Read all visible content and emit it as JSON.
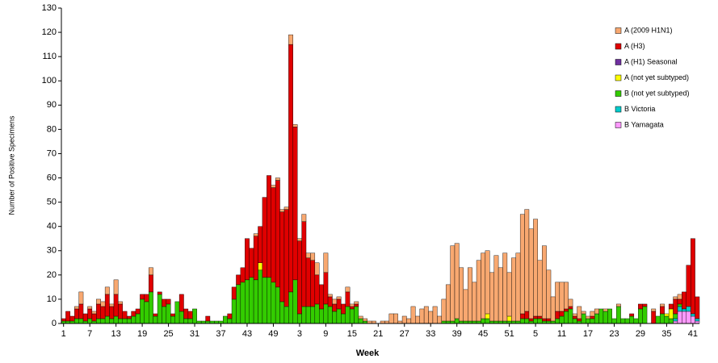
{
  "chart_data": {
    "type": "stacked_bar",
    "x_label": "Week",
    "y_label": "Number of Positive Specimens",
    "categories": [
      "1",
      null,
      null,
      null,
      null,
      null,
      "7",
      null,
      null,
      null,
      null,
      null,
      "13",
      null,
      null,
      null,
      null,
      null,
      "19",
      null,
      null,
      null,
      null,
      null,
      "25",
      null,
      null,
      null,
      null,
      null,
      "31",
      null,
      null,
      null,
      null,
      null,
      "37",
      null,
      null,
      null,
      null,
      null,
      "43",
      null,
      null,
      null,
      null,
      null,
      "49",
      null,
      null,
      null,
      null,
      null,
      "3",
      null,
      null,
      null,
      null,
      null,
      "9",
      null,
      null,
      null,
      null,
      null,
      "15",
      null,
      null,
      null,
      null,
      null,
      "21",
      null,
      null,
      null,
      null,
      null,
      "27",
      null,
      null,
      null,
      null,
      null,
      "33",
      null,
      null,
      null,
      null,
      null,
      "39",
      null,
      null,
      null,
      null,
      null,
      "45",
      null,
      null,
      null,
      null,
      null,
      "51",
      null,
      null,
      null,
      null,
      null,
      "5",
      null,
      null,
      null,
      null,
      null,
      "11",
      null,
      null,
      null,
      null,
      null,
      "17",
      null,
      null,
      null,
      null,
      null,
      "23",
      null,
      null,
      null,
      null,
      null,
      "29",
      null,
      null,
      null,
      null,
      null,
      "35",
      null,
      null,
      null,
      null,
      null,
      "41",
      null
    ],
    "ylim": [
      0,
      130
    ],
    "yticks": [
      0,
      10,
      20,
      30,
      40,
      50,
      60,
      70,
      80,
      90,
      100,
      110,
      120,
      130
    ],
    "legend": "top-right",
    "series": [
      {
        "name": "A (2009 H1N1)",
        "color": "#f8a870",
        "values": [
          0,
          0,
          0,
          1,
          5,
          0,
          1,
          1,
          2,
          2,
          3,
          1,
          6,
          1,
          0,
          0,
          0,
          0,
          0,
          0,
          3,
          0,
          0,
          0,
          0,
          0,
          0,
          0,
          0,
          0,
          0,
          0,
          0,
          0,
          0,
          0,
          0,
          0,
          0,
          0,
          0,
          0,
          0,
          0,
          1,
          0,
          0,
          0,
          1,
          1,
          1,
          1,
          4,
          1,
          1,
          3,
          2,
          3,
          5,
          0,
          8,
          1,
          2,
          1,
          0,
          2,
          1,
          1,
          1,
          1,
          1,
          1,
          0,
          1,
          1,
          4,
          4,
          1,
          3,
          2,
          7,
          3,
          6,
          7,
          5,
          7,
          3,
          9,
          15,
          31,
          31,
          22,
          13,
          22,
          16,
          25,
          27,
          26,
          20,
          27,
          22,
          28,
          18,
          26,
          28,
          41,
          42,
          37,
          40,
          23,
          30,
          20,
          10,
          12,
          12,
          11,
          3,
          1,
          5,
          1,
          1,
          2,
          2,
          0,
          1,
          0,
          0,
          1,
          0,
          0,
          0,
          0,
          0,
          0,
          0,
          1,
          0,
          1,
          0,
          0,
          1,
          2,
          0,
          0,
          0,
          0
        ]
      },
      {
        "name": "A (H3)",
        "color": "#e00000",
        "values": [
          1,
          4,
          2,
          4,
          6,
          3,
          4,
          3,
          6,
          5,
          9,
          5,
          9,
          6,
          3,
          1,
          2,
          2,
          2,
          3,
          7,
          1,
          1,
          3,
          2,
          1,
          0,
          7,
          4,
          3,
          0,
          0,
          0,
          2,
          0,
          0,
          0,
          0,
          2,
          5,
          4,
          6,
          17,
          12,
          18,
          15,
          33,
          42,
          39,
          44,
          37,
          40,
          102,
          63,
          30,
          35,
          20,
          19,
          12,
          10,
          13,
          4,
          3,
          4,
          4,
          6,
          1,
          1,
          0,
          0,
          0,
          0,
          0,
          0,
          0,
          0,
          0,
          0,
          0,
          0,
          0,
          0,
          0,
          0,
          0,
          0,
          0,
          0,
          0,
          0,
          0,
          0,
          0,
          0,
          0,
          0,
          0,
          0,
          0,
          0,
          0,
          0,
          0,
          0,
          0,
          2,
          3,
          1,
          1,
          1,
          1,
          1,
          0,
          3,
          2,
          1,
          1,
          1,
          1,
          0,
          0,
          1,
          0,
          0,
          0,
          0,
          0,
          0,
          0,
          0,
          1,
          0,
          2,
          1,
          0,
          5,
          0,
          3,
          0,
          2,
          6,
          2,
          7,
          17,
          31,
          9
        ]
      },
      {
        "name": "A (H1) Seasonal",
        "color": "#7030a0",
        "values": [
          0,
          0,
          0,
          0,
          0,
          0,
          0,
          0,
          0,
          0,
          0,
          0,
          0,
          0,
          0,
          0,
          0,
          0,
          0,
          0,
          0,
          0,
          0,
          0,
          0,
          0,
          0,
          0,
          0,
          0,
          0,
          0,
          0,
          0,
          0,
          0,
          0,
          0,
          0,
          0,
          0,
          0,
          0,
          0,
          0,
          0,
          0,
          0,
          0,
          0,
          0,
          0,
          0,
          0,
          0,
          0,
          0,
          0,
          0,
          0,
          0,
          0,
          0,
          0,
          0,
          0,
          0,
          0,
          0,
          0,
          0,
          0,
          0,
          0,
          0,
          0,
          0,
          0,
          0,
          0,
          0,
          0,
          0,
          0,
          0,
          0,
          0,
          0,
          0,
          0,
          0,
          0,
          0,
          0,
          0,
          0,
          0,
          0,
          0,
          0,
          0,
          0,
          0,
          0,
          0,
          0,
          0,
          0,
          0,
          0,
          0,
          0,
          0,
          0,
          0,
          0,
          0,
          0,
          0,
          0,
          0,
          0,
          0,
          0,
          0,
          0,
          0,
          0,
          0,
          0,
          0,
          0,
          0,
          0,
          0,
          0,
          0,
          0,
          0,
          0,
          0,
          0,
          0,
          0,
          0,
          0
        ]
      },
      {
        "name": "A (not yet subtyped)",
        "color": "#ffff00",
        "values": [
          0,
          0,
          0,
          0,
          0,
          0,
          0,
          0,
          0,
          0,
          0,
          0,
          0,
          0,
          0,
          0,
          0,
          0,
          0,
          0,
          0,
          0,
          0,
          0,
          0,
          0,
          0,
          0,
          0,
          0,
          0,
          0,
          0,
          0,
          0,
          0,
          0,
          0,
          0,
          0,
          0,
          0,
          0,
          0,
          0,
          3,
          0,
          0,
          0,
          0,
          0,
          0,
          0,
          0,
          0,
          0,
          0,
          0,
          0,
          0,
          0,
          0,
          0,
          0,
          0,
          0,
          0,
          0,
          0,
          0,
          0,
          0,
          0,
          0,
          0,
          0,
          0,
          0,
          0,
          0,
          0,
          0,
          0,
          0,
          0,
          0,
          0,
          0,
          0,
          0,
          0,
          0,
          0,
          0,
          0,
          0,
          0,
          2,
          0,
          0,
          0,
          0,
          2,
          0,
          0,
          0,
          0,
          0,
          0,
          0,
          0,
          0,
          0,
          0,
          0,
          0,
          0,
          0,
          0,
          0,
          0,
          0,
          0,
          0,
          0,
          0,
          0,
          0,
          0,
          0,
          0,
          0,
          0,
          0,
          0,
          0,
          0,
          0,
          1,
          4,
          0,
          0,
          0,
          0,
          0,
          0
        ]
      },
      {
        "name": "B (not yet subtyped)",
        "color": "#33cc00",
        "values": [
          1,
          1,
          1,
          2,
          2,
          1,
          2,
          1,
          2,
          2,
          3,
          2,
          3,
          2,
          2,
          2,
          3,
          4,
          10,
          9,
          13,
          3,
          12,
          7,
          8,
          3,
          9,
          5,
          2,
          2,
          6,
          1,
          1,
          1,
          1,
          1,
          1,
          3,
          2,
          10,
          16,
          17,
          18,
          19,
          18,
          22,
          19,
          19,
          17,
          15,
          9,
          7,
          13,
          18,
          4,
          7,
          7,
          7,
          8,
          6,
          8,
          7,
          5,
          6,
          4,
          7,
          6,
          7,
          2,
          1,
          0,
          0,
          0,
          0,
          0,
          0,
          0,
          0,
          0,
          0,
          0,
          0,
          0,
          0,
          0,
          0,
          0,
          1,
          1,
          1,
          2,
          1,
          1,
          1,
          1,
          1,
          2,
          2,
          1,
          1,
          1,
          1,
          1,
          1,
          1,
          2,
          2,
          1,
          2,
          2,
          1,
          1,
          1,
          2,
          3,
          5,
          6,
          2,
          1,
          4,
          2,
          2,
          4,
          6,
          5,
          6,
          2,
          7,
          2,
          2,
          3,
          2,
          6,
          7,
          0,
          0,
          3,
          4,
          3,
          2,
          2,
          1,
          0,
          0,
          0,
          0
        ]
      },
      {
        "name": "B Victoria",
        "color": "#00cccc",
        "values": [
          0,
          0,
          0,
          0,
          0,
          0,
          0,
          0,
          0,
          0,
          0,
          0,
          0,
          0,
          0,
          0,
          0,
          0,
          0,
          0,
          0,
          0,
          0,
          0,
          0,
          0,
          0,
          0,
          0,
          0,
          0,
          0,
          0,
          0,
          0,
          0,
          0,
          0,
          0,
          0,
          0,
          0,
          0,
          0,
          0,
          0,
          0,
          0,
          0,
          0,
          0,
          0,
          0,
          0,
          0,
          0,
          0,
          0,
          0,
          0,
          0,
          0,
          0,
          0,
          0,
          0,
          0,
          0,
          0,
          0,
          0,
          0,
          0,
          0,
          0,
          0,
          0,
          0,
          0,
          0,
          0,
          0,
          0,
          0,
          0,
          0,
          0,
          0,
          0,
          0,
          0,
          0,
          0,
          0,
          0,
          0,
          0,
          0,
          0,
          0,
          0,
          0,
          0,
          0,
          0,
          0,
          0,
          0,
          0,
          0,
          0,
          0,
          0,
          0,
          0,
          0,
          0,
          0,
          0,
          0,
          0,
          0,
          0,
          0,
          0,
          0,
          0,
          0,
          0,
          0,
          0,
          0,
          0,
          0,
          0,
          0,
          0,
          0,
          0,
          0,
          1,
          2,
          1,
          2,
          1,
          1
        ]
      },
      {
        "name": "B Yamagata",
        "color": "#ff99ff",
        "values": [
          0,
          0,
          0,
          0,
          0,
          0,
          0,
          0,
          0,
          0,
          0,
          0,
          0,
          0,
          0,
          0,
          0,
          0,
          0,
          0,
          0,
          0,
          0,
          0,
          0,
          0,
          0,
          0,
          0,
          0,
          0,
          0,
          0,
          0,
          0,
          0,
          0,
          0,
          0,
          0,
          0,
          0,
          0,
          0,
          0,
          0,
          0,
          0,
          0,
          0,
          0,
          0,
          0,
          0,
          0,
          0,
          0,
          0,
          0,
          0,
          0,
          0,
          0,
          0,
          0,
          0,
          0,
          0,
          0,
          0,
          0,
          0,
          0,
          0,
          0,
          0,
          0,
          0,
          0,
          0,
          0,
          0,
          0,
          0,
          0,
          0,
          0,
          0,
          0,
          0,
          0,
          0,
          0,
          0,
          0,
          0,
          0,
          0,
          0,
          0,
          0,
          0,
          0,
          0,
          0,
          0,
          0,
          0,
          0,
          0,
          0,
          0,
          0,
          0,
          0,
          0,
          0,
          0,
          0,
          0,
          0,
          0,
          0,
          0,
          0,
          0,
          0,
          0,
          0,
          0,
          0,
          0,
          0,
          0,
          0,
          0,
          0,
          0,
          0,
          0,
          1,
          5,
          5,
          5,
          3,
          1
        ]
      }
    ]
  }
}
